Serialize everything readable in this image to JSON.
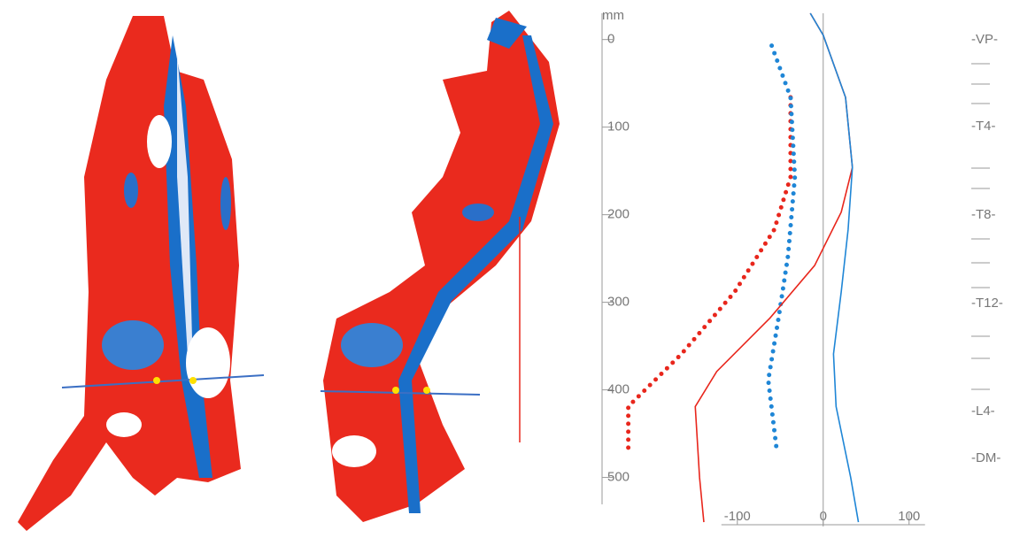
{
  "chart_data": {
    "type": "line",
    "orientation": "vertical",
    "y_unit": "mm",
    "ylim": [
      -30,
      556
    ],
    "yticks": [
      0,
      100,
      200,
      300,
      400,
      500
    ],
    "xlim": [
      -240,
      125
    ],
    "xticks": [
      -100,
      0,
      100
    ],
    "series": [
      {
        "color": "#e8261c",
        "style": "dotted",
        "x": [
          -38,
          -38,
          -57,
          -103,
          -165,
          -227,
          -227
        ],
        "y": [
          66,
          157,
          217,
          288,
          359,
          419,
          472
        ]
      },
      {
        "color": "#1f86d6",
        "style": "dotted",
        "x": [
          -60,
          -38,
          -33,
          -41,
          -52,
          -64,
          -54
        ],
        "y": [
          7,
          66,
          157,
          247,
          318,
          389,
          470
        ]
      },
      {
        "color": "#e8261c",
        "style": "solid",
        "x": [
          -15,
          0,
          26,
          34,
          21,
          -10,
          -62,
          -124,
          -149,
          -144,
          -139
        ],
        "y": [
          -30,
          -5,
          66,
          146,
          197,
          258,
          318,
          379,
          419,
          500,
          551
        ]
      },
      {
        "color": "#1f86d6",
        "style": "solid",
        "x": [
          -15,
          0,
          26,
          34,
          29,
          21,
          12,
          15,
          32,
          41
        ],
        "y": [
          -30,
          -5,
          66,
          146,
          217,
          288,
          359,
          419,
          500,
          551
        ]
      }
    ],
    "vertebra_labels": [
      "-VP-",
      "-T4-",
      "-T8-",
      "-T12-",
      "-L4-",
      "-DM-"
    ]
  }
}
